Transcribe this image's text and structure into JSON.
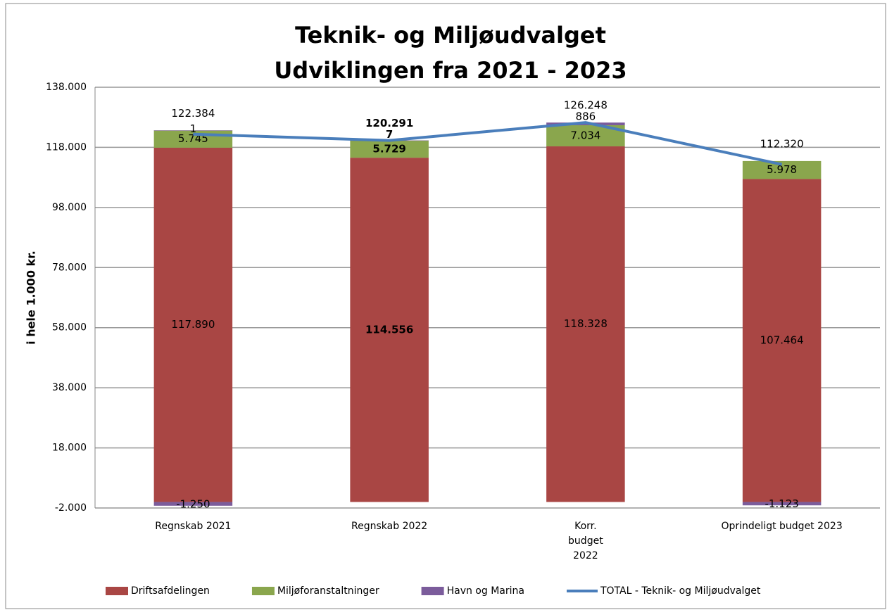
{
  "chart_data": {
    "type": "stacked-bar-line",
    "title": "Teknik- og Miljøudvalget",
    "subtitle": "Udviklingen fra 2021 - 2023",
    "ylabel": "i hele 1.000 kr.",
    "categories": [
      "Regnskab 2021",
      "Regnskab 2022",
      "Korr. budget 2022",
      "Oprindeligt budget 2023"
    ],
    "series": [
      {
        "name": "Driftsafdelingen",
        "color": "#a94644",
        "values": [
          117890,
          114556,
          118328,
          107464
        ],
        "value_labels": [
          "117.890",
          "114.556",
          "118.328",
          "107.464"
        ]
      },
      {
        "name": "Miljøforanstaltninger",
        "color": "#8aa64d",
        "values": [
          5745,
          5729,
          7034,
          5978
        ],
        "value_labels": [
          "5.745",
          "5.729",
          "7.034",
          "5.978"
        ]
      },
      {
        "name": "Havn og Marina",
        "color": "#7b5c9b",
        "values": [
          -1250,
          7,
          886,
          -1123
        ],
        "value_labels": [
          "-1.250",
          "7",
          "886",
          "-1.123"
        ]
      },
      {
        "color": "#7b5c9b",
        "values": [
          1,
          null,
          null,
          null
        ]
      }
    ],
    "line": {
      "name": "TOTAL - Teknik- og Miljøudvalget",
      "color": "#4a7ebb",
      "values": [
        122384,
        120291,
        126248,
        112320
      ],
      "value_labels": [
        "122.384",
        "120.291",
        "126.248",
        "112.320"
      ]
    },
    "ylim": [
      -2000,
      138000
    ],
    "yticks": [
      {
        "value": -2000,
        "label": "-2.000"
      },
      {
        "value": 18000,
        "label": "18.000"
      },
      {
        "value": 38000,
        "label": "38.000"
      },
      {
        "value": 58000,
        "label": "58.000"
      },
      {
        "value": 78000,
        "label": "78.000"
      },
      {
        "value": 98000,
        "label": "98.000"
      },
      {
        "value": 118000,
        "label": "118.000"
      },
      {
        "value": 138000,
        "label": "138.000"
      }
    ],
    "grid": true,
    "legend": "bottom"
  }
}
